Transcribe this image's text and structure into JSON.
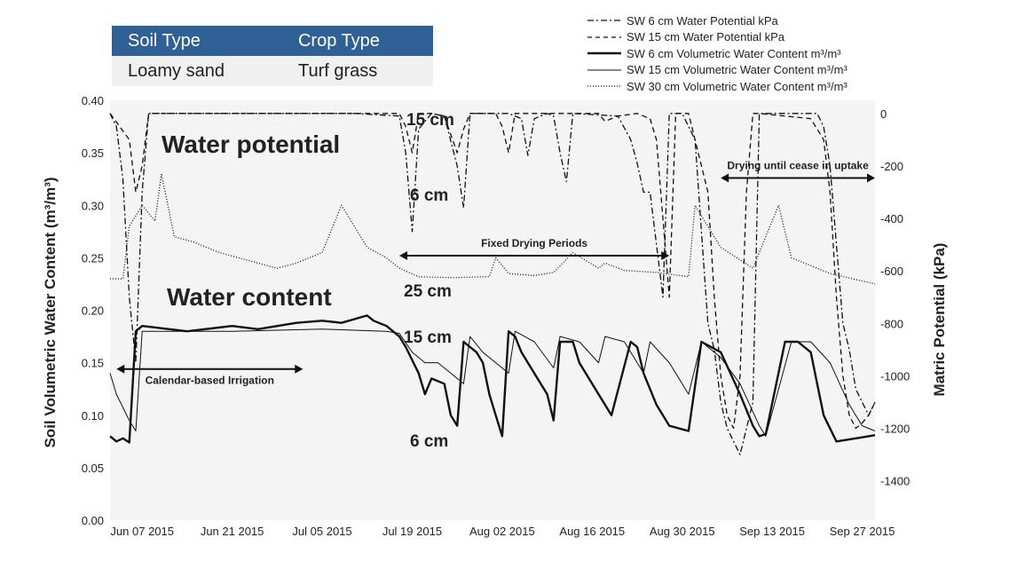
{
  "info_table": {
    "headers": [
      "Soil Type",
      "Crop Type"
    ],
    "row": [
      "Loamy sand",
      "Turf grass"
    ]
  },
  "colors": {
    "header_bg": "#2f6096",
    "plot_bg": "#f4f4f4",
    "series": "#111111"
  },
  "chart_data": {
    "type": "line",
    "x_tick_labels": [
      "Jun 07 2015",
      "Jun 21 2015",
      "Jul 05 2015",
      "Jul 19 2015",
      "Aug 02 2015",
      "Aug 16 2015",
      "Aug 30 2015",
      "Sep 13 2015",
      "Sep 27 2015"
    ],
    "xlim": [
      "2015-06-02",
      "2015-09-29"
    ],
    "y_left": {
      "label": "Soil Volumetric Water Content (m³/m³)",
      "lim": [
        0.0,
        0.4
      ],
      "ticks": [
        "0.00",
        "0.05",
        "0.10",
        "0.15",
        "0.20",
        "0.25",
        "0.30",
        "0.35",
        "0.40"
      ]
    },
    "y_right": {
      "label": "Matric Potential (kPa)",
      "lim": [
        -1550,
        50
      ],
      "ticks": [
        "0",
        "-200",
        "-400",
        "-600",
        "-800",
        "-1000",
        "-1200",
        "-1400"
      ]
    },
    "grid": false,
    "legend_position": "top-right",
    "series": [
      {
        "name": "SW 6 cm Water Potential kPa",
        "axis": "right",
        "dash": "dashdot",
        "x": [
          "2015-06-02",
          "2015-06-03",
          "2015-06-04",
          "2015-06-05",
          "2015-06-06",
          "2015-06-07",
          "2015-06-08",
          "2015-06-20",
          "2015-07-10",
          "2015-07-17",
          "2015-07-18",
          "2015-07-19",
          "2015-07-20",
          "2015-07-22",
          "2015-07-24",
          "2015-07-26",
          "2015-07-27",
          "2015-07-28",
          "2015-08-03",
          "2015-08-05",
          "2015-08-06",
          "2015-08-07",
          "2015-08-09",
          "2015-08-10",
          "2015-08-11",
          "2015-08-12",
          "2015-08-13",
          "2015-08-20",
          "2015-08-22",
          "2015-08-23",
          "2015-08-24",
          "2015-08-25",
          "2015-08-27",
          "2015-08-28",
          "2015-08-30",
          "2015-09-01",
          "2015-09-02",
          "2015-09-03",
          "2015-09-04",
          "2015-09-05",
          "2015-09-06",
          "2015-09-08",
          "2015-09-10",
          "2015-09-11",
          "2015-09-20",
          "2015-09-21",
          "2015-09-22",
          "2015-09-23",
          "2015-09-24",
          "2015-09-25",
          "2015-09-26",
          "2015-09-27",
          "2015-09-28",
          "2015-09-29"
        ],
        "y": [
          0,
          -50,
          -250,
          -700,
          -950,
          -300,
          0,
          0,
          0,
          -10,
          -150,
          -450,
          -60,
          0,
          -10,
          -200,
          -360,
          0,
          0,
          -20,
          -160,
          -20,
          0,
          -10,
          -150,
          -260,
          0,
          -10,
          -100,
          -190,
          -300,
          -300,
          -700,
          0,
          0,
          -100,
          -450,
          -800,
          -900,
          -1100,
          -1200,
          -1300,
          -1100,
          0,
          0,
          -50,
          -200,
          -500,
          -800,
          -900,
          -1050,
          -1100,
          -1150,
          -1100
        ]
      },
      {
        "name": "SW 15 cm Water Potential kPa",
        "axis": "right",
        "dash": "dashed",
        "x": [
          "2015-06-02",
          "2015-06-05",
          "2015-06-06",
          "2015-06-07",
          "2015-06-08",
          "2015-07-17",
          "2015-07-18",
          "2015-07-19",
          "2015-07-20",
          "2015-07-22",
          "2015-07-24",
          "2015-07-25",
          "2015-07-26",
          "2015-07-27",
          "2015-07-28",
          "2015-08-01",
          "2015-08-02",
          "2015-08-03",
          "2015-08-04",
          "2015-08-17",
          "2015-08-18",
          "2015-08-20",
          "2015-08-23",
          "2015-08-25",
          "2015-08-26",
          "2015-08-27",
          "2015-08-28",
          "2015-08-29",
          "2015-08-31",
          "2015-09-03",
          "2015-09-04",
          "2015-09-05",
          "2015-09-06",
          "2015-09-07",
          "2015-09-08",
          "2015-09-09",
          "2015-09-10",
          "2015-09-11",
          "2015-09-19",
          "2015-09-21",
          "2015-09-22",
          "2015-09-23",
          "2015-09-24",
          "2015-09-25",
          "2015-09-26",
          "2015-09-27",
          "2015-09-28",
          "2015-09-29"
        ],
        "y": [
          0,
          -100,
          -300,
          -200,
          0,
          0,
          -50,
          -150,
          0,
          0,
          -10,
          -80,
          -150,
          -60,
          0,
          0,
          -50,
          -150,
          0,
          0,
          -30,
          -10,
          0,
          -20,
          -100,
          -400,
          -700,
          0,
          0,
          -300,
          -700,
          -1000,
          -1150,
          -1200,
          -1000,
          -300,
          0,
          0,
          -20,
          -100,
          -300,
          -700,
          -1000,
          -1150,
          -1200,
          -1180,
          -1150,
          -1100
        ]
      },
      {
        "name": "SW 6 cm Volumetric Water Content m³/m³",
        "axis": "left",
        "dash": "solid",
        "x": [
          "2015-06-02",
          "2015-06-03",
          "2015-06-04",
          "2015-06-05",
          "2015-06-06",
          "2015-06-07",
          "2015-06-14",
          "2015-06-21",
          "2015-06-25",
          "2015-07-01",
          "2015-07-05",
          "2015-07-08",
          "2015-07-12",
          "2015-07-13",
          "2015-07-15",
          "2015-07-17",
          "2015-07-18",
          "2015-07-20",
          "2015-07-21",
          "2015-07-22",
          "2015-07-24",
          "2015-07-25",
          "2015-07-26",
          "2015-07-27",
          "2015-07-28",
          "2015-07-29",
          "2015-07-30",
          "2015-07-31",
          "2015-08-01",
          "2015-08-02",
          "2015-08-03",
          "2015-08-04",
          "2015-08-05",
          "2015-08-06",
          "2015-08-09",
          "2015-08-10",
          "2015-08-11",
          "2015-08-13",
          "2015-08-14",
          "2015-08-17",
          "2015-08-19",
          "2015-08-22",
          "2015-08-23",
          "2015-08-24",
          "2015-08-26",
          "2015-08-28",
          "2015-08-31",
          "2015-09-02",
          "2015-09-05",
          "2015-09-08",
          "2015-09-10",
          "2015-09-11",
          "2015-09-12",
          "2015-09-15",
          "2015-09-17",
          "2015-09-19",
          "2015-09-20",
          "2015-09-21",
          "2015-09-23",
          "2015-09-26",
          "2015-09-28",
          "2015-09-29"
        ],
        "y": [
          0.08,
          0.075,
          0.078,
          0.074,
          0.18,
          0.185,
          0.18,
          0.185,
          0.182,
          0.188,
          0.19,
          0.188,
          0.195,
          0.19,
          0.185,
          0.175,
          0.165,
          0.14,
          0.12,
          0.135,
          0.13,
          0.1,
          0.09,
          0.17,
          0.165,
          0.16,
          0.15,
          0.12,
          0.1,
          0.08,
          0.18,
          0.175,
          0.16,
          0.15,
          0.12,
          0.095,
          0.17,
          0.17,
          0.15,
          0.12,
          0.1,
          0.17,
          0.165,
          0.14,
          0.11,
          0.09,
          0.085,
          0.17,
          0.16,
          0.12,
          0.09,
          0.08,
          0.082,
          0.17,
          0.17,
          0.16,
          0.13,
          0.1,
          0.075,
          0.078,
          0.08,
          0.081
        ]
      },
      {
        "name": "SW 15 cm Volumetric Water Content m³/m³",
        "axis": "left",
        "dash": "thin",
        "x": [
          "2015-06-02",
          "2015-06-03",
          "2015-06-05",
          "2015-06-06",
          "2015-06-07",
          "2015-06-21",
          "2015-07-05",
          "2015-07-15",
          "2015-07-17",
          "2015-07-19",
          "2015-07-21",
          "2015-07-23",
          "2015-07-25",
          "2015-07-27",
          "2015-07-28",
          "2015-07-30",
          "2015-08-01",
          "2015-08-03",
          "2015-08-04",
          "2015-08-07",
          "2015-08-10",
          "2015-08-11",
          "2015-08-14",
          "2015-08-17",
          "2015-08-18",
          "2015-08-21",
          "2015-08-24",
          "2015-08-25",
          "2015-08-28",
          "2015-08-31",
          "2015-09-02",
          "2015-09-05",
          "2015-09-08",
          "2015-09-11",
          "2015-09-12",
          "2015-09-16",
          "2015-09-19",
          "2015-09-22",
          "2015-09-25",
          "2015-09-27",
          "2015-09-29"
        ],
        "y": [
          0.14,
          0.12,
          0.095,
          0.085,
          0.18,
          0.18,
          0.182,
          0.18,
          0.178,
          0.16,
          0.15,
          0.15,
          0.14,
          0.13,
          0.175,
          0.16,
          0.15,
          0.14,
          0.18,
          0.17,
          0.145,
          0.175,
          0.17,
          0.15,
          0.175,
          0.17,
          0.14,
          0.17,
          0.15,
          0.12,
          0.17,
          0.155,
          0.13,
          0.09,
          0.08,
          0.17,
          0.17,
          0.15,
          0.11,
          0.09,
          0.085
        ]
      },
      {
        "name": "SW 30 cm Volumetric Water Content m³/m³",
        "axis": "left",
        "dash": "dotted",
        "x": [
          "2015-06-02",
          "2015-06-04",
          "2015-06-05",
          "2015-06-06",
          "2015-06-07",
          "2015-06-09",
          "2015-06-10",
          "2015-06-12",
          "2015-06-15",
          "2015-06-17",
          "2015-06-19",
          "2015-06-22",
          "2015-06-25",
          "2015-06-28",
          "2015-07-01",
          "2015-07-03",
          "2015-07-05",
          "2015-07-06",
          "2015-07-08",
          "2015-07-10",
          "2015-07-12",
          "2015-07-15",
          "2015-07-17",
          "2015-07-20",
          "2015-07-25",
          "2015-07-31",
          "2015-08-01",
          "2015-08-03",
          "2015-08-07",
          "2015-08-10",
          "2015-08-13",
          "2015-08-17",
          "2015-08-18",
          "2015-08-21",
          "2015-08-26",
          "2015-08-31",
          "2015-09-01",
          "2015-09-05",
          "2015-09-10",
          "2015-09-14",
          "2015-09-16",
          "2015-09-22",
          "2015-09-29"
        ],
        "y": [
          0.23,
          0.23,
          0.28,
          0.29,
          0.3,
          0.285,
          0.33,
          0.27,
          0.265,
          0.26,
          0.255,
          0.25,
          0.245,
          0.24,
          0.245,
          0.25,
          0.255,
          0.27,
          0.3,
          0.28,
          0.26,
          0.25,
          0.24,
          0.232,
          0.231,
          0.232,
          0.25,
          0.235,
          0.233,
          0.236,
          0.255,
          0.24,
          0.245,
          0.238,
          0.236,
          0.232,
          0.3,
          0.26,
          0.24,
          0.3,
          0.25,
          0.235,
          0.225
        ]
      }
    ],
    "annotations": [
      {
        "text": "Water potential",
        "big": true
      },
      {
        "text": "Water content",
        "big": true
      },
      {
        "text": "15 cm"
      },
      {
        "text": "6 cm"
      },
      {
        "text": "25 cm"
      },
      {
        "text": "15 cm"
      },
      {
        "text": "6 cm"
      },
      {
        "text": "Calendar-based Irrigation",
        "small": true,
        "span": [
          "2015-06-03",
          "2015-07-02"
        ],
        "level": 0.144
      },
      {
        "text": "Fixed Drying Periods",
        "small": true,
        "span": [
          "2015-07-17",
          "2015-08-28"
        ],
        "level": 0.252
      },
      {
        "text": "Drying until cease in uptake",
        "small": true,
        "span": [
          "2015-09-05",
          "2015-09-29"
        ],
        "level": 0.326
      }
    ]
  }
}
